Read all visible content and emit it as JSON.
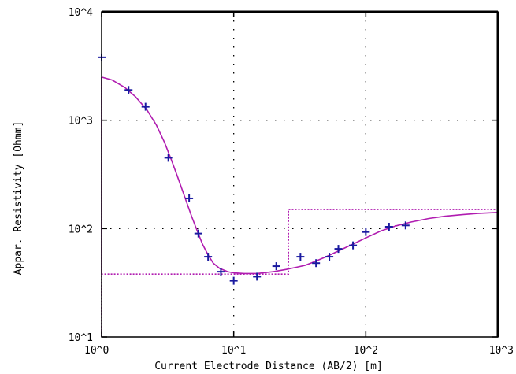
{
  "chart_data": {
    "type": "scatter",
    "xlabel": "Current Electrode Distance (AB/2) [m]",
    "ylabel": "Appar. Resistivity [Ohmm]",
    "xscale": "log",
    "yscale": "log",
    "xlim": [
      1,
      1000
    ],
    "ylim": [
      10,
      10000
    ],
    "grid": "dotted",
    "x_ticks": [
      1,
      10,
      100,
      1000
    ],
    "x_tick_labels": [
      "10^0",
      "10^1",
      "10^2",
      "10^3"
    ],
    "y_ticks": [
      10,
      100,
      1000,
      10000
    ],
    "y_tick_labels": [
      "10^1",
      "10^2",
      "10^3",
      "10^4"
    ],
    "colors": {
      "observed": "#1a1aa0",
      "model": "#b01cb0",
      "grid": "#000000"
    },
    "observed": {
      "marker": "plus",
      "points": [
        [
          1.0,
          3800
        ],
        [
          1.6,
          1900
        ],
        [
          2.15,
          1330
        ],
        [
          3.2,
          450
        ],
        [
          4.6,
          190
        ],
        [
          5.4,
          90
        ],
        [
          6.4,
          55
        ],
        [
          8.0,
          40
        ],
        [
          10.0,
          33
        ],
        [
          15.0,
          36
        ],
        [
          21.0,
          45
        ],
        [
          32.0,
          55
        ],
        [
          42.0,
          48
        ],
        [
          53.0,
          55
        ],
        [
          62.0,
          65
        ],
        [
          80.0,
          70
        ],
        [
          100.0,
          93
        ],
        [
          150.0,
          104
        ],
        [
          200.0,
          107
        ]
      ]
    },
    "model_curve": {
      "style": "solid",
      "points": [
        [
          1.0,
          2500
        ],
        [
          1.2,
          2350
        ],
        [
          1.5,
          2000
        ],
        [
          1.8,
          1650
        ],
        [
          2.2,
          1250
        ],
        [
          2.6,
          900
        ],
        [
          3.0,
          620
        ],
        [
          3.4,
          420
        ],
        [
          3.8,
          290
        ],
        [
          4.3,
          190
        ],
        [
          4.8,
          130
        ],
        [
          5.3,
          95
        ],
        [
          5.8,
          72
        ],
        [
          6.4,
          57
        ],
        [
          7.0,
          48
        ],
        [
          7.8,
          43
        ],
        [
          9.0,
          40
        ],
        [
          10.0,
          39
        ],
        [
          12.0,
          38.5
        ],
        [
          15.0,
          38.5
        ],
        [
          20.0,
          40
        ],
        [
          25.0,
          42
        ],
        [
          30.0,
          44
        ],
        [
          35.0,
          46
        ],
        [
          40.0,
          49
        ],
        [
          50.0,
          55
        ],
        [
          60.0,
          61
        ],
        [
          80.0,
          72
        ],
        [
          100.0,
          82
        ],
        [
          130.0,
          95
        ],
        [
          170.0,
          106
        ],
        [
          220.0,
          115
        ],
        [
          300.0,
          124
        ],
        [
          400.0,
          130
        ],
        [
          550.0,
          135
        ],
        [
          700.0,
          138
        ],
        [
          1000.0,
          141
        ]
      ]
    },
    "layer_model": {
      "style": "dotted",
      "points": [
        [
          1.0,
          10
        ],
        [
          1.0,
          2500
        ],
        [
          1.0,
          38
        ],
        [
          26.0,
          38
        ],
        [
          26.0,
          150
        ],
        [
          1000.0,
          150
        ]
      ]
    }
  }
}
